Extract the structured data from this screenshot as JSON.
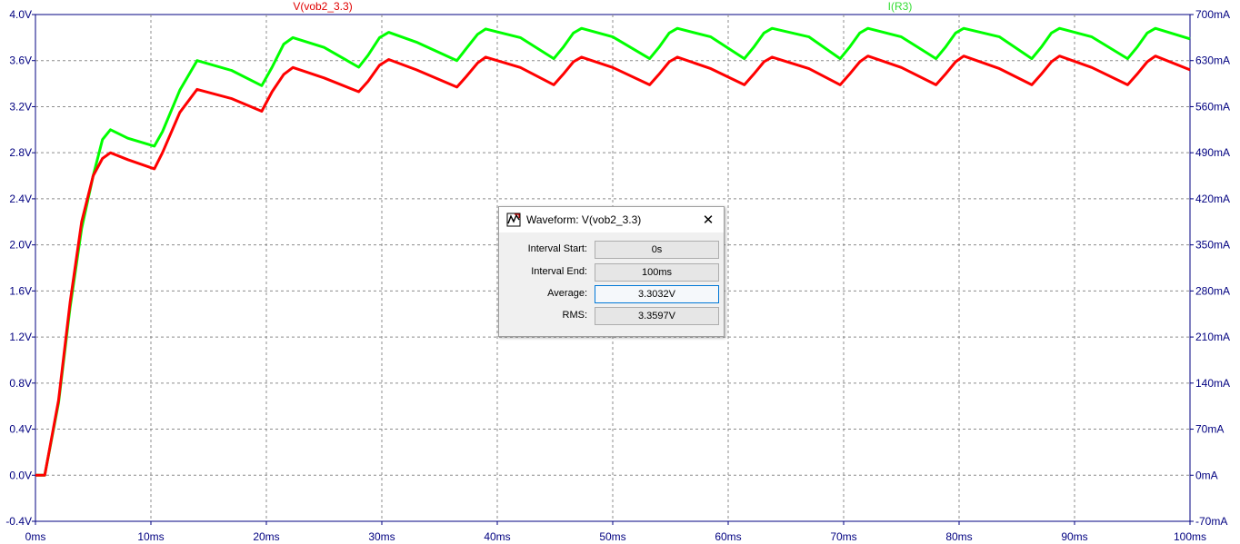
{
  "chart_data": {
    "type": "line",
    "xlabel": "",
    "xlim": [
      0,
      100
    ],
    "x_unit": "ms",
    "x_ticks": [
      "0ms",
      "10ms",
      "20ms",
      "30ms",
      "40ms",
      "50ms",
      "60ms",
      "70ms",
      "80ms",
      "90ms",
      "100ms"
    ],
    "y_left_lim": [
      -0.4,
      4.0
    ],
    "y_left_ticks": [
      "4.0V",
      "3.6V",
      "3.2V",
      "2.8V",
      "2.4V",
      "2.0V",
      "1.6V",
      "1.2V",
      "0.8V",
      "0.4V",
      "0.0V",
      "-0.4V"
    ],
    "y_right_lim": [
      -70,
      700
    ],
    "y_right_ticks": [
      "700mA",
      "630mA",
      "560mA",
      "490mA",
      "420mA",
      "350mA",
      "280mA",
      "210mA",
      "140mA",
      "70mA",
      "0mA",
      "-70mA"
    ],
    "grid": true,
    "series": [
      {
        "name": "V(vob2_3.3)",
        "axis": "left",
        "color": "#ff0000",
        "x": [
          0,
          0.8,
          2,
          3,
          4,
          5,
          5.8,
          6.5,
          8,
          10.3,
          11,
          12.5,
          14,
          17,
          19.6,
          20.5,
          21.5,
          22.3,
          25,
          28,
          28.8,
          29.8,
          30.6,
          33,
          36.5,
          37.3,
          38.3,
          39,
          42,
          44.9,
          45.7,
          46.6,
          47.3,
          50,
          53.2,
          54.0,
          54.9,
          55.6,
          58.5,
          61.4,
          62.2,
          63.1,
          63.8,
          67,
          69.7,
          70.5,
          71.4,
          72.1,
          75,
          78.0,
          78.8,
          79.7,
          80.4,
          83.5,
          86.3,
          87.1,
          88.0,
          88.7,
          91.5,
          94.6,
          95.4,
          96.3,
          97.0,
          100
        ],
        "y": [
          0,
          0,
          0.65,
          1.5,
          2.2,
          2.6,
          2.75,
          2.8,
          2.74,
          2.66,
          2.8,
          3.15,
          3.35,
          3.27,
          3.16,
          3.33,
          3.48,
          3.54,
          3.45,
          3.33,
          3.42,
          3.56,
          3.61,
          3.52,
          3.37,
          3.46,
          3.58,
          3.63,
          3.54,
          3.39,
          3.48,
          3.59,
          3.63,
          3.54,
          3.39,
          3.48,
          3.59,
          3.63,
          3.53,
          3.39,
          3.48,
          3.59,
          3.63,
          3.53,
          3.39,
          3.48,
          3.59,
          3.64,
          3.54,
          3.39,
          3.48,
          3.59,
          3.64,
          3.53,
          3.39,
          3.48,
          3.59,
          3.64,
          3.54,
          3.39,
          3.48,
          3.59,
          3.64,
          3.52
        ]
      },
      {
        "name": "I(R3)",
        "axis": "right",
        "color": "#00ff00",
        "x": [
          0,
          0.8,
          2,
          3,
          4,
          5,
          5.8,
          6.5,
          8,
          10.3,
          11,
          12.5,
          14,
          17,
          19.6,
          20.5,
          21.5,
          22.3,
          25,
          28,
          28.8,
          29.8,
          30.6,
          33,
          36.5,
          37.3,
          38.3,
          39,
          42,
          44.9,
          45.7,
          46.6,
          47.3,
          50,
          53.2,
          54.0,
          54.9,
          55.6,
          58.5,
          61.4,
          62.2,
          63.1,
          63.8,
          67,
          69.7,
          70.5,
          71.4,
          72.1,
          75,
          78.0,
          78.8,
          79.7,
          80.4,
          83.5,
          86.3,
          87.1,
          88.0,
          88.7,
          91.5,
          94.6,
          95.4,
          96.3,
          97.0,
          100
        ],
        "y": [
          0,
          0,
          110,
          255,
          375,
          455,
          510,
          525,
          512,
          500,
          522,
          585,
          630,
          615,
          592,
          620,
          655,
          665,
          650,
          620,
          638,
          665,
          673,
          658,
          630,
          648,
          670,
          678,
          665,
          633,
          650,
          672,
          679,
          666,
          633,
          650,
          672,
          679,
          666,
          633,
          650,
          672,
          679,
          666,
          633,
          650,
          672,
          679,
          666,
          633,
          650,
          672,
          679,
          666,
          633,
          650,
          672,
          679,
          666,
          633,
          650,
          672,
          679,
          663
        ]
      }
    ]
  },
  "dialog": {
    "title": "Waveform: V(vob2_3.3)",
    "close_glyph": "✕",
    "icon": "ltspice-waveform-icon",
    "rows": [
      {
        "label": "Interval Start:",
        "value": "0s"
      },
      {
        "label": "Interval End:",
        "value": "100ms"
      },
      {
        "label": "Average:",
        "value": "3.3032V"
      },
      {
        "label": "RMS:",
        "value": "3.3597V"
      }
    ]
  }
}
